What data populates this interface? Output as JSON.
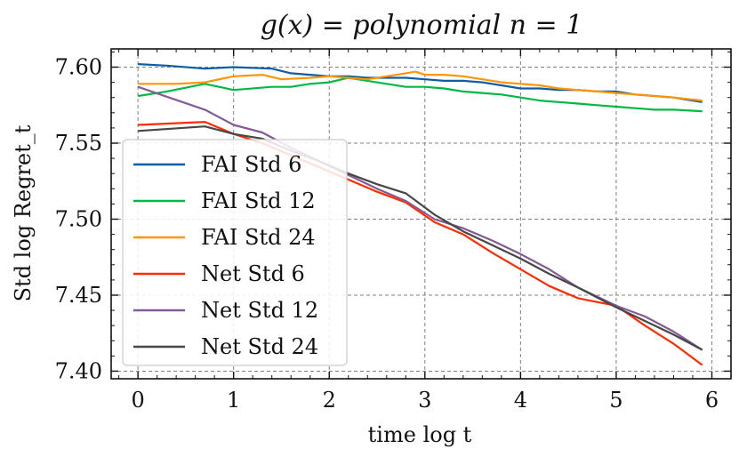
{
  "chart_data": {
    "type": "line",
    "title": "g(x) = polynomial n = 1",
    "xlabel": "time log t",
    "ylabel": "Std log Regret_t",
    "xlim": [
      -0.28,
      6.2
    ],
    "ylim": [
      7.395,
      7.612
    ],
    "xticks": [
      0,
      1,
      2,
      3,
      4,
      5,
      6
    ],
    "yticks": [
      7.4,
      7.45,
      7.5,
      7.55,
      7.6
    ],
    "ytick_labels": [
      "7.40",
      "7.45",
      "7.50",
      "7.55",
      "7.60"
    ],
    "grid": true,
    "legend_position": "left",
    "series": [
      {
        "name": "FAI Std 6",
        "color": "#0C5DA5",
        "points": [
          [
            0,
            7.602
          ],
          [
            0.3,
            7.601
          ],
          [
            0.7,
            7.599
          ],
          [
            1.0,
            7.6
          ],
          [
            1.4,
            7.599
          ],
          [
            1.6,
            7.596
          ],
          [
            1.8,
            7.595
          ],
          [
            2.0,
            7.594
          ],
          [
            2.2,
            7.594
          ],
          [
            2.4,
            7.593
          ],
          [
            2.6,
            7.593
          ],
          [
            2.8,
            7.593
          ],
          [
            3.0,
            7.592
          ],
          [
            3.2,
            7.591
          ],
          [
            3.4,
            7.591
          ],
          [
            3.6,
            7.59
          ],
          [
            3.8,
            7.588
          ],
          [
            4.0,
            7.586
          ],
          [
            4.2,
            7.586
          ],
          [
            4.4,
            7.585
          ],
          [
            4.6,
            7.585
          ],
          [
            4.8,
            7.584
          ],
          [
            5.0,
            7.584
          ],
          [
            5.2,
            7.582
          ],
          [
            5.4,
            7.581
          ],
          [
            5.6,
            7.58
          ],
          [
            5.9,
            7.577
          ]
        ]
      },
      {
        "name": "FAI Std 12",
        "color": "#00B945",
        "points": [
          [
            0,
            7.581
          ],
          [
            0.3,
            7.584
          ],
          [
            0.7,
            7.589
          ],
          [
            1.0,
            7.585
          ],
          [
            1.4,
            7.587
          ],
          [
            1.6,
            7.587
          ],
          [
            1.8,
            7.589
          ],
          [
            2.0,
            7.59
          ],
          [
            2.2,
            7.593
          ],
          [
            2.4,
            7.591
          ],
          [
            2.6,
            7.589
          ],
          [
            2.8,
            7.587
          ],
          [
            3.0,
            7.587
          ],
          [
            3.2,
            7.586
          ],
          [
            3.4,
            7.584
          ],
          [
            3.6,
            7.583
          ],
          [
            3.8,
            7.582
          ],
          [
            4.0,
            7.58
          ],
          [
            4.2,
            7.578
          ],
          [
            4.4,
            7.577
          ],
          [
            4.6,
            7.576
          ],
          [
            4.8,
            7.575
          ],
          [
            5.0,
            7.574
          ],
          [
            5.2,
            7.573
          ],
          [
            5.4,
            7.572
          ],
          [
            5.6,
            7.572
          ],
          [
            5.9,
            7.571
          ]
        ]
      },
      {
        "name": "FAI Std 24",
        "color": "#FF9500",
        "points": [
          [
            0,
            7.589
          ],
          [
            0.4,
            7.589
          ],
          [
            0.7,
            7.59
          ],
          [
            1.0,
            7.594
          ],
          [
            1.3,
            7.595
          ],
          [
            1.5,
            7.592
          ],
          [
            1.8,
            7.593
          ],
          [
            2.0,
            7.594
          ],
          [
            2.2,
            7.593
          ],
          [
            2.4,
            7.592
          ],
          [
            2.6,
            7.594
          ],
          [
            2.8,
            7.596
          ],
          [
            2.9,
            7.597
          ],
          [
            3.0,
            7.595
          ],
          [
            3.2,
            7.595
          ],
          [
            3.4,
            7.594
          ],
          [
            3.6,
            7.592
          ],
          [
            3.8,
            7.59
          ],
          [
            4.0,
            7.589
          ],
          [
            4.2,
            7.588
          ],
          [
            4.4,
            7.586
          ],
          [
            4.6,
            7.585
          ],
          [
            4.8,
            7.584
          ],
          [
            5.0,
            7.583
          ],
          [
            5.2,
            7.582
          ],
          [
            5.4,
            7.581
          ],
          [
            5.6,
            7.58
          ],
          [
            5.9,
            7.578
          ]
        ]
      },
      {
        "name": "Net Std 6",
        "color": "#FF2C00",
        "points": [
          [
            0,
            7.562
          ],
          [
            0.7,
            7.564
          ],
          [
            1.0,
            7.556
          ],
          [
            1.3,
            7.55
          ],
          [
            1.6,
            7.542
          ],
          [
            1.9,
            7.534
          ],
          [
            2.2,
            7.526
          ],
          [
            2.5,
            7.518
          ],
          [
            2.8,
            7.511
          ],
          [
            3.1,
            7.498
          ],
          [
            3.4,
            7.49
          ],
          [
            3.7,
            7.478
          ],
          [
            4.0,
            7.467
          ],
          [
            4.3,
            7.456
          ],
          [
            4.6,
            7.448
          ],
          [
            5.0,
            7.443
          ],
          [
            5.3,
            7.43
          ],
          [
            5.6,
            7.418
          ],
          [
            5.9,
            7.404
          ]
        ]
      },
      {
        "name": "Net Std 12",
        "color": "#845B97",
        "points": [
          [
            0,
            7.587
          ],
          [
            0.7,
            7.572
          ],
          [
            1.0,
            7.562
          ],
          [
            1.3,
            7.557
          ],
          [
            1.6,
            7.547
          ],
          [
            1.9,
            7.538
          ],
          [
            2.2,
            7.529
          ],
          [
            2.5,
            7.52
          ],
          [
            2.8,
            7.512
          ],
          [
            3.1,
            7.5
          ],
          [
            3.4,
            7.494
          ],
          [
            3.7,
            7.486
          ],
          [
            4.0,
            7.477
          ],
          [
            4.3,
            7.467
          ],
          [
            4.6,
            7.455
          ],
          [
            5.0,
            7.443
          ],
          [
            5.3,
            7.436
          ],
          [
            5.6,
            7.426
          ],
          [
            5.9,
            7.414
          ]
        ]
      },
      {
        "name": "Net Std 24",
        "color": "#474747",
        "points": [
          [
            0,
            7.558
          ],
          [
            0.7,
            7.561
          ],
          [
            1.0,
            7.556
          ],
          [
            1.3,
            7.553
          ],
          [
            1.6,
            7.545
          ],
          [
            1.9,
            7.538
          ],
          [
            2.2,
            7.53
          ],
          [
            2.5,
            7.523
          ],
          [
            2.8,
            7.517
          ],
          [
            3.1,
            7.503
          ],
          [
            3.4,
            7.492
          ],
          [
            3.7,
            7.483
          ],
          [
            4.0,
            7.474
          ],
          [
            4.3,
            7.464
          ],
          [
            4.6,
            7.455
          ],
          [
            5.0,
            7.442
          ],
          [
            5.3,
            7.433
          ],
          [
            5.6,
            7.424
          ],
          [
            5.9,
            7.414
          ]
        ]
      }
    ]
  }
}
